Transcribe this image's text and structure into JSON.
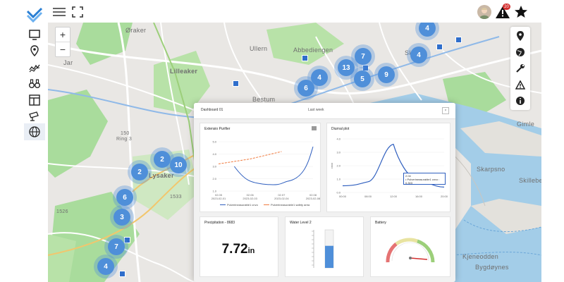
{
  "topbar": {
    "notification_count": "20"
  },
  "map": {
    "zoom_in": "+",
    "zoom_out": "−",
    "places": [
      "Øraker",
      "Lilleaker",
      "Jar",
      "Ullern",
      "Abbediengen",
      "Skøyen",
      "Bestum",
      "Lysaker",
      "Gimle",
      "Skarpsno",
      "Skillebe",
      "Kjeneodden",
      "Bygdøynes",
      "150",
      "Ring 3",
      "1533",
      "1526"
    ],
    "clusters": [
      "4",
      "7",
      "4",
      "13",
      "4",
      "5",
      "9",
      "6",
      "2",
      "10",
      "2",
      "6",
      "3",
      "7",
      "4"
    ]
  },
  "dashboard": {
    "title": "Dashboard 01",
    "range": "Last week",
    "close": "×",
    "widgets": {
      "line_chart": {
        "title": "Extensio Purifier",
        "legend": [
          "Pulverineasurable1 cnvo",
          "Pulverineasurable1 safety area"
        ],
        "x_ticks": [
          "02.05\n2023-02-01",
          "02.06\n2023-02-03",
          "02.07\n2023-02-04",
          "02.08\n2023-02-08"
        ],
        "y_ticks": [
          "5.0",
          "4.0",
          "3.0",
          "2.0",
          "1.0"
        ]
      },
      "diurnal": {
        "title": "Diurnal plot",
        "tooltip_line1": "2.04",
        "tooltip_line2": "• Pulverineasurable1 cnvo : 0.303",
        "x_ticks": [
          "00:00",
          "08:00",
          "12:00",
          "16:00",
          "20:00"
        ],
        "y_ticks": [
          "4.0",
          "3.0",
          "2.0",
          "1.0",
          "0.0"
        ],
        "y_label": "cnvo"
      },
      "precip": {
        "title": "Precipitation - 8683",
        "value": "7.72",
        "unit": "in"
      },
      "water": {
        "title": "Water Level 2",
        "fill_fraction": 0.58
      },
      "battery": {
        "title": "Battery"
      }
    }
  },
  "chart_data": [
    {
      "type": "line",
      "title": "Extensio Purifier",
      "x": [
        "02.05",
        "02.06",
        "02.07",
        "02.08"
      ],
      "series": [
        {
          "name": "Pulverineasurable1 cnvo",
          "values": [
            3.2,
            2.0,
            1.9,
            4.6
          ]
        },
        {
          "name": "Pulverineasurable1 safety area",
          "values": [
            3.2,
            3.6,
            4.2,
            null
          ]
        }
      ],
      "ylim": [
        1.0,
        5.0
      ]
    },
    {
      "type": "line",
      "title": "Diurnal plot",
      "x": [
        "00:00",
        "08:00",
        "12:00",
        "16:00",
        "20:00"
      ],
      "series": [
        {
          "name": "Pulverineasurable1 cnvo",
          "values": [
            0.5,
            0.8,
            3.6,
            0.9,
            0.4
          ]
        }
      ],
      "ylim": [
        0.0,
        4.0
      ]
    }
  ],
  "colors": {
    "accent": "#4f8fd9",
    "nav_logo": "#2a7fd4",
    "alert": "#d32f2f",
    "series_main": "#2f5fbf",
    "series_safety": "#f07b3f"
  }
}
